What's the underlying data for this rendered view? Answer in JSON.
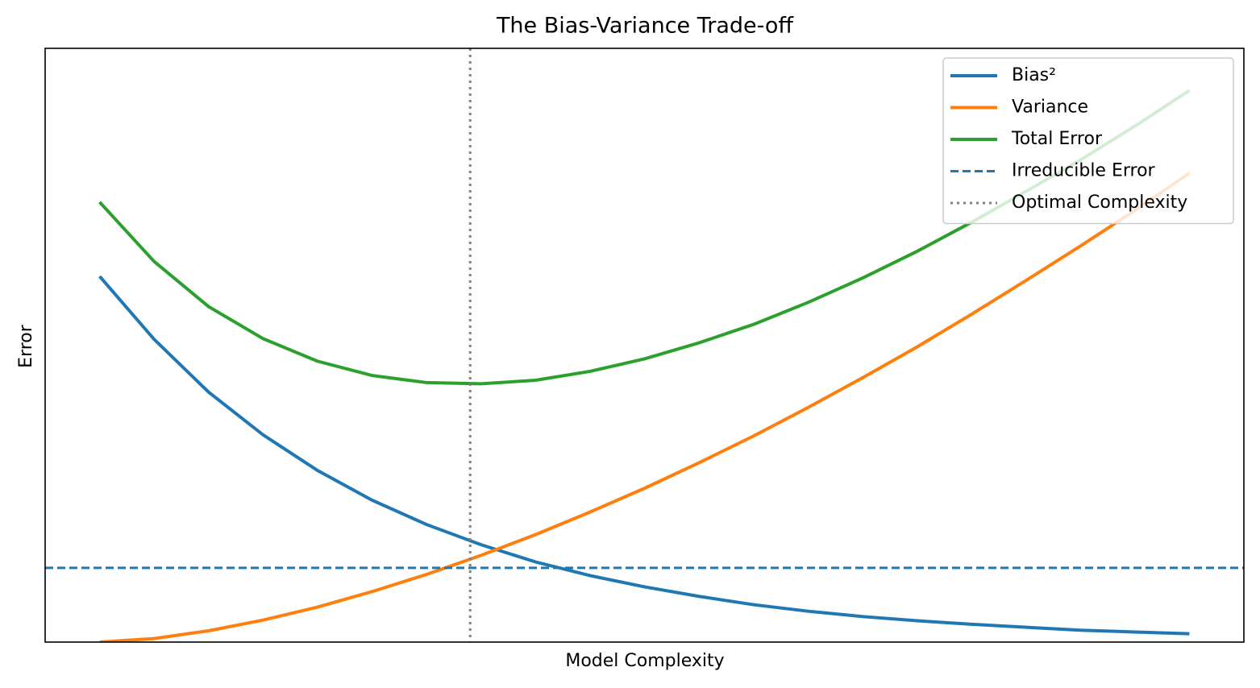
{
  "chart_data": {
    "type": "line",
    "title": "The Bias-Variance Trade-off",
    "x_label": "Model Complexity",
    "y_label": "Error",
    "x": [
      0,
      0.5,
      1,
      1.5,
      2,
      2.5,
      3,
      3.5,
      4,
      4.5,
      5,
      5.5,
      6,
      6.5,
      7,
      7.5,
      8,
      8.5,
      9,
      9.5,
      10
    ],
    "series": [
      {
        "name": "Bias²",
        "color": "#1f77b4",
        "values": [
          6.16,
          5.1,
          4.21,
          3.49,
          2.89,
          2.39,
          1.98,
          1.64,
          1.35,
          1.12,
          0.93,
          0.77,
          0.63,
          0.52,
          0.43,
          0.36,
          0.3,
          0.25,
          0.2,
          0.17,
          0.14
        ]
      },
      {
        "name": "Variance",
        "color": "#ff7f0e",
        "values": [
          0,
          0.06,
          0.19,
          0.37,
          0.59,
          0.85,
          1.14,
          1.46,
          1.81,
          2.19,
          2.59,
          3.02,
          3.47,
          3.95,
          4.45,
          4.97,
          5.52,
          6.09,
          6.67,
          7.27,
          7.9
        ]
      },
      {
        "name": "Total Error",
        "color": "#2ca02c",
        "values": [
          7.41,
          6.41,
          5.65,
          5.11,
          4.73,
          4.49,
          4.37,
          4.35,
          4.41,
          4.56,
          4.77,
          5.04,
          5.35,
          5.72,
          6.13,
          6.58,
          7.07,
          7.59,
          8.12,
          8.69,
          9.29
        ]
      }
    ],
    "hlines": [
      {
        "name": "Irreducible Error",
        "color": "#1f77b4",
        "y": 1.25,
        "style": "dashed"
      }
    ],
    "vlines": [
      {
        "name": "Optimal Complexity",
        "color": "#808080",
        "x": 3.4,
        "style": "dotted"
      }
    ],
    "xlim": [
      -0.5,
      10.5
    ],
    "ylim": [
      0,
      10
    ],
    "legend": "upper right"
  }
}
